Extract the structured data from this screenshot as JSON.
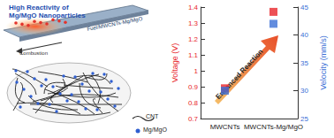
{
  "diagram": {
    "title": "High Reactivity of Mg/MgO Nanoparticles",
    "slab_label": "Fuel/MWCNTs-Mg/MgO",
    "process": "Combustion",
    "legend": [
      "CNT",
      "Mg/MgO"
    ]
  },
  "chart_data": {
    "type": "scatter",
    "categories": [
      "MWCNTs",
      "MWCNTs-Mg/MgO"
    ],
    "y_label": "Voltage (V)",
    "y2_label": "Velocity (mm/s)",
    "annotations": [
      "Enhanced Reaction"
    ],
    "series": [
      {
        "color": "#e8262a",
        "marker": "square",
        "values": [
          0.89,
          1.37
        ]
      },
      {
        "color": "#3b6fd6",
        "marker": "square",
        "axis": "y2",
        "values": [
          30,
          42
        ]
      }
    ],
    "ylim": [
      0.7,
      1.4
    ],
    "yticks": [
      0.7,
      0.8,
      0.9,
      1.0,
      1.1,
      1.2,
      1.3,
      1.4
    ],
    "y2lim": [
      25,
      45
    ],
    "y2ticks": [
      25,
      30,
      35,
      40,
      45
    ],
    "grid": false
  }
}
